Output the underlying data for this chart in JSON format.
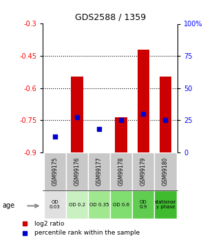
{
  "title": "GDS2588 / 1359",
  "samples": [
    "GSM99175",
    "GSM99176",
    "GSM99177",
    "GSM99178",
    "GSM99179",
    "GSM99180"
  ],
  "log2_ratio": [
    -0.9,
    -0.545,
    -0.9,
    -0.735,
    -0.42,
    -0.545
  ],
  "log2_ratio_base": [
    -0.9,
    -0.9,
    -0.9,
    -0.9,
    -0.9,
    -0.9
  ],
  "percentile_rank": [
    12,
    27,
    18,
    25,
    30,
    25
  ],
  "ylim_left": [
    -0.9,
    -0.3
  ],
  "ylim_right": [
    0,
    100
  ],
  "yticks_left": [
    -0.9,
    -0.75,
    -0.6,
    -0.45,
    -0.3
  ],
  "yticks_right": [
    0,
    25,
    50,
    75,
    100
  ],
  "ytick_labels_right": [
    "0",
    "25",
    "50",
    "75",
    "100%"
  ],
  "dotted_lines": [
    -0.45,
    -0.6,
    -0.75
  ],
  "bar_color": "#cc0000",
  "dot_color": "#0000cc",
  "bar_width": 0.55,
  "age_labels": [
    "OD\n0.03",
    "OD 0.2",
    "OD 0.35",
    "OD 0.6",
    "OD\n0.9",
    "stationar\ny phase"
  ],
  "age_bg_colors": [
    "#e0e0e0",
    "#c8f0c0",
    "#a0e890",
    "#80dd70",
    "#60cc50",
    "#40bb30"
  ],
  "legend_items": [
    {
      "color": "#cc0000",
      "label": "log2 ratio"
    },
    {
      "color": "#0000cc",
      "label": "percentile rank within the sample"
    }
  ]
}
